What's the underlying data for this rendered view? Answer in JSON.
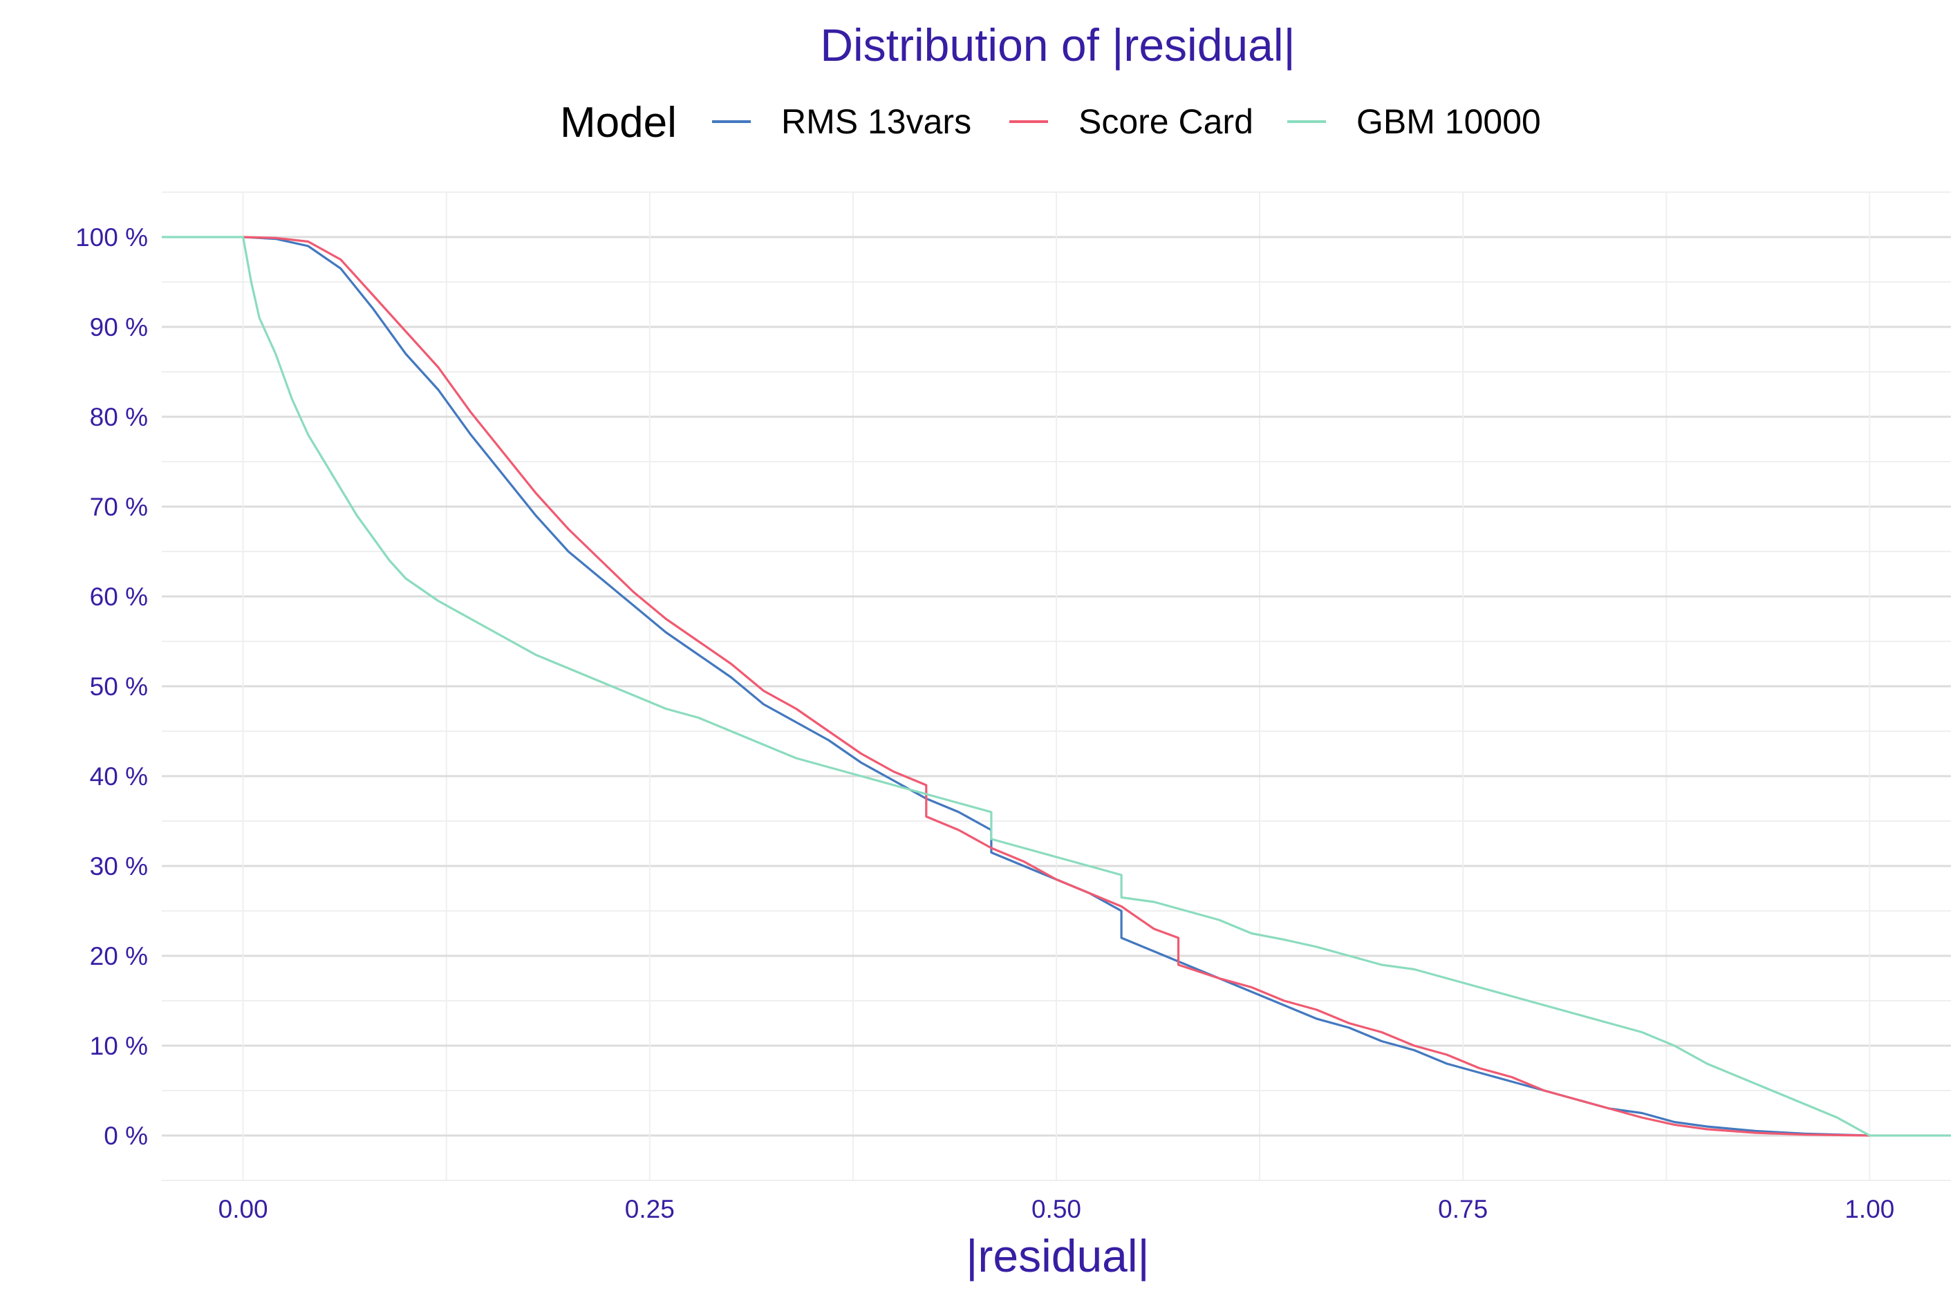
{
  "chart_data": {
    "type": "line",
    "title": "Distribution of |residual|",
    "xlabel": "|residual|",
    "ylabel": "",
    "xlim": [
      -0.05,
      1.05
    ],
    "ylim": [
      -0.05,
      1.05
    ],
    "x_ticks": [
      0.0,
      0.25,
      0.5,
      0.75,
      1.0
    ],
    "x_tick_labels": [
      "0.00",
      "0.25",
      "0.50",
      "0.75",
      "1.00"
    ],
    "y_ticks": [
      0,
      0.1,
      0.2,
      0.3,
      0.4,
      0.5,
      0.6,
      0.7,
      0.8,
      0.9,
      1.0
    ],
    "y_tick_labels": [
      "0 %",
      "10 %",
      "20 %",
      "30 %",
      "40 %",
      "50 %",
      "60 %",
      "70 %",
      "80 %",
      "90 %",
      "100 %"
    ],
    "grid": true,
    "legend": {
      "title": "Model",
      "position": "top"
    },
    "series": [
      {
        "name": "RMS 13vars",
        "color": "#4378bf",
        "points": [
          [
            0.0,
            1.0
          ],
          [
            0.02,
            0.998
          ],
          [
            0.04,
            0.99
          ],
          [
            0.06,
            0.965
          ],
          [
            0.08,
            0.92
          ],
          [
            0.1,
            0.87
          ],
          [
            0.12,
            0.83
          ],
          [
            0.14,
            0.78
          ],
          [
            0.16,
            0.735
          ],
          [
            0.18,
            0.69
          ],
          [
            0.2,
            0.65
          ],
          [
            0.22,
            0.62
          ],
          [
            0.24,
            0.59
          ],
          [
            0.26,
            0.56
          ],
          [
            0.28,
            0.535
          ],
          [
            0.3,
            0.51
          ],
          [
            0.32,
            0.48
          ],
          [
            0.34,
            0.46
          ],
          [
            0.36,
            0.44
          ],
          [
            0.38,
            0.415
          ],
          [
            0.4,
            0.395
          ],
          [
            0.42,
            0.375
          ],
          [
            0.44,
            0.36
          ],
          [
            0.455,
            0.345
          ],
          [
            0.46,
            0.34
          ],
          [
            0.46,
            0.315
          ],
          [
            0.48,
            0.3
          ],
          [
            0.5,
            0.285
          ],
          [
            0.52,
            0.27
          ],
          [
            0.54,
            0.25
          ],
          [
            0.54,
            0.22
          ],
          [
            0.56,
            0.205
          ],
          [
            0.58,
            0.19
          ],
          [
            0.6,
            0.175
          ],
          [
            0.62,
            0.16
          ],
          [
            0.64,
            0.145
          ],
          [
            0.66,
            0.13
          ],
          [
            0.68,
            0.12
          ],
          [
            0.7,
            0.105
          ],
          [
            0.72,
            0.095
          ],
          [
            0.74,
            0.08
          ],
          [
            0.76,
            0.07
          ],
          [
            0.78,
            0.06
          ],
          [
            0.8,
            0.05
          ],
          [
            0.82,
            0.04
          ],
          [
            0.84,
            0.03
          ],
          [
            0.86,
            0.025
          ],
          [
            0.88,
            0.015
          ],
          [
            0.9,
            0.01
          ],
          [
            0.93,
            0.005
          ],
          [
            0.96,
            0.002
          ],
          [
            1.0,
            0.0
          ]
        ]
      },
      {
        "name": "Score Card",
        "color": "#f05a71",
        "points": [
          [
            0.0,
            1.0
          ],
          [
            0.02,
            0.999
          ],
          [
            0.04,
            0.995
          ],
          [
            0.06,
            0.975
          ],
          [
            0.08,
            0.935
          ],
          [
            0.1,
            0.895
          ],
          [
            0.12,
            0.855
          ],
          [
            0.14,
            0.805
          ],
          [
            0.16,
            0.76
          ],
          [
            0.18,
            0.715
          ],
          [
            0.2,
            0.675
          ],
          [
            0.22,
            0.64
          ],
          [
            0.24,
            0.605
          ],
          [
            0.26,
            0.575
          ],
          [
            0.28,
            0.55
          ],
          [
            0.3,
            0.525
          ],
          [
            0.32,
            0.495
          ],
          [
            0.34,
            0.475
          ],
          [
            0.36,
            0.45
          ],
          [
            0.38,
            0.425
          ],
          [
            0.4,
            0.405
          ],
          [
            0.42,
            0.39
          ],
          [
            0.42,
            0.355
          ],
          [
            0.44,
            0.34
          ],
          [
            0.46,
            0.32
          ],
          [
            0.48,
            0.305
          ],
          [
            0.5,
            0.285
          ],
          [
            0.52,
            0.27
          ],
          [
            0.54,
            0.255
          ],
          [
            0.56,
            0.23
          ],
          [
            0.575,
            0.22
          ],
          [
            0.575,
            0.19
          ],
          [
            0.6,
            0.175
          ],
          [
            0.62,
            0.165
          ],
          [
            0.64,
            0.15
          ],
          [
            0.66,
            0.14
          ],
          [
            0.68,
            0.125
          ],
          [
            0.7,
            0.115
          ],
          [
            0.72,
            0.1
          ],
          [
            0.74,
            0.09
          ],
          [
            0.76,
            0.075
          ],
          [
            0.78,
            0.065
          ],
          [
            0.8,
            0.05
          ],
          [
            0.82,
            0.04
          ],
          [
            0.84,
            0.03
          ],
          [
            0.86,
            0.02
          ],
          [
            0.88,
            0.012
          ],
          [
            0.9,
            0.007
          ],
          [
            0.93,
            0.003
          ],
          [
            0.96,
            0.001
          ],
          [
            1.0,
            0.0
          ]
        ]
      },
      {
        "name": "GBM 10000",
        "color": "#8bdcbe",
        "points": [
          [
            -0.05,
            1.0
          ],
          [
            0.0,
            1.0
          ],
          [
            0.005,
            0.95
          ],
          [
            0.01,
            0.91
          ],
          [
            0.02,
            0.87
          ],
          [
            0.03,
            0.82
          ],
          [
            0.04,
            0.78
          ],
          [
            0.05,
            0.75
          ],
          [
            0.06,
            0.72
          ],
          [
            0.07,
            0.69
          ],
          [
            0.08,
            0.665
          ],
          [
            0.09,
            0.64
          ],
          [
            0.1,
            0.62
          ],
          [
            0.12,
            0.595
          ],
          [
            0.14,
            0.575
          ],
          [
            0.16,
            0.555
          ],
          [
            0.18,
            0.535
          ],
          [
            0.2,
            0.52
          ],
          [
            0.22,
            0.505
          ],
          [
            0.24,
            0.49
          ],
          [
            0.26,
            0.475
          ],
          [
            0.28,
            0.465
          ],
          [
            0.3,
            0.45
          ],
          [
            0.32,
            0.435
          ],
          [
            0.34,
            0.42
          ],
          [
            0.36,
            0.41
          ],
          [
            0.38,
            0.4
          ],
          [
            0.4,
            0.39
          ],
          [
            0.42,
            0.38
          ],
          [
            0.44,
            0.37
          ],
          [
            0.46,
            0.36
          ],
          [
            0.46,
            0.33
          ],
          [
            0.48,
            0.32
          ],
          [
            0.5,
            0.31
          ],
          [
            0.52,
            0.3
          ],
          [
            0.54,
            0.29
          ],
          [
            0.54,
            0.265
          ],
          [
            0.56,
            0.26
          ],
          [
            0.58,
            0.25
          ],
          [
            0.6,
            0.24
          ],
          [
            0.62,
            0.225
          ],
          [
            0.64,
            0.218
          ],
          [
            0.66,
            0.21
          ],
          [
            0.68,
            0.2
          ],
          [
            0.7,
            0.19
          ],
          [
            0.72,
            0.185
          ],
          [
            0.74,
            0.175
          ],
          [
            0.76,
            0.165
          ],
          [
            0.78,
            0.155
          ],
          [
            0.8,
            0.145
          ],
          [
            0.82,
            0.135
          ],
          [
            0.84,
            0.125
          ],
          [
            0.86,
            0.115
          ],
          [
            0.88,
            0.1
          ],
          [
            0.9,
            0.08
          ],
          [
            0.92,
            0.065
          ],
          [
            0.94,
            0.05
          ],
          [
            0.96,
            0.035
          ],
          [
            0.98,
            0.02
          ],
          [
            1.0,
            0.0
          ],
          [
            1.05,
            0.0
          ]
        ]
      }
    ]
  }
}
